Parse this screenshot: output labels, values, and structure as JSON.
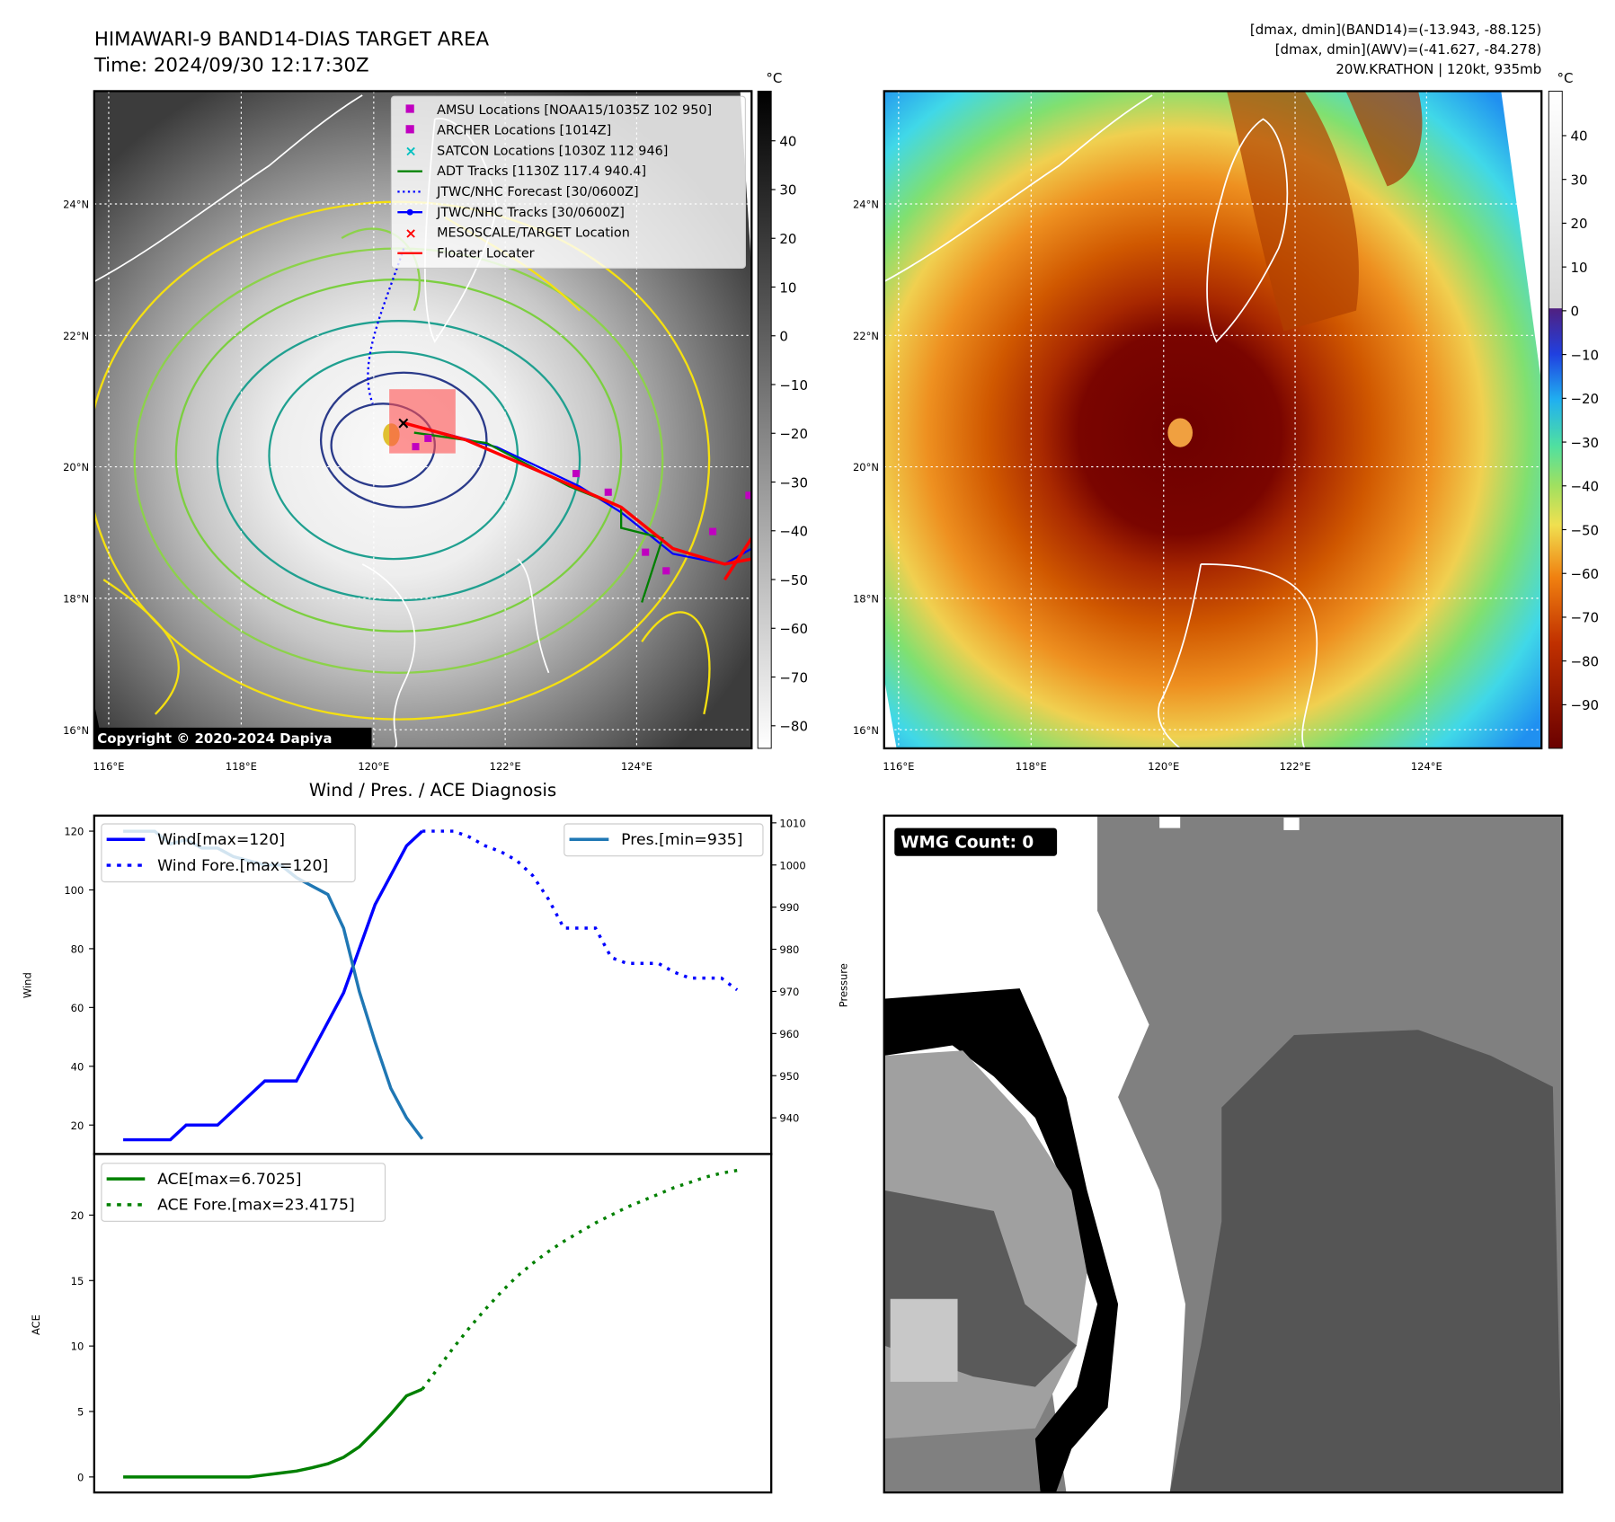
{
  "header": {
    "title": "HIMAWARI-9 BAND14-DIAS TARGET AREA",
    "time": "Time: 2024/09/30 12:17:30Z",
    "stats": [
      "[dmax, dmin](BAND14)=(-13.943, -88.125)",
      "[dmax, dmin](AWV)=(-41.627, -84.278)",
      "20W.KRATHON | 120kt, 935mb"
    ]
  },
  "map_left": {
    "lat_labels": [
      "24°N",
      "22°N",
      "20°N",
      "18°N",
      "16°N"
    ],
    "lon_labels": [
      "116°E",
      "118°E",
      "120°E",
      "122°E",
      "124°E"
    ],
    "colorbar": {
      "unit": "°C",
      "ticks": [
        "40",
        "30",
        "20",
        "10",
        "0",
        "−10",
        "−20",
        "−30",
        "−40",
        "−50",
        "−60",
        "−70",
        "−80"
      ]
    },
    "legend": [
      {
        "label": "AMSU Locations [NOAA15/1035Z 102 950]",
        "marker": "square",
        "color": "#c000c0"
      },
      {
        "label": "ARCHER Locations [1014Z]",
        "marker": "square",
        "color": "#c000c0"
      },
      {
        "label": "SATCON Locations [1030Z 112 946]",
        "marker": "x",
        "color": "#00c0c0"
      },
      {
        "label": "ADT Tracks [1130Z 117.4 940.4]",
        "marker": "line",
        "color": "#008000"
      },
      {
        "label": "JTWC/NHC Forecast [30/0600Z]",
        "marker": "dotted",
        "color": "#0000ff"
      },
      {
        "label": "JTWC/NHC Tracks [30/0600Z]",
        "marker": "line-dot",
        "color": "#0000ff"
      },
      {
        "label": "MESOSCALE/TARGET Location",
        "marker": "x",
        "color": "#ff0000"
      },
      {
        "label": "Floater Locater",
        "marker": "line",
        "color": "#ff0000"
      }
    ],
    "copyright": "Copyright © 2020-2024 Dapiya"
  },
  "map_right": {
    "lat_labels": [
      "24°N",
      "22°N",
      "20°N",
      "18°N",
      "16°N"
    ],
    "lon_labels": [
      "116°E",
      "118°E",
      "120°E",
      "122°E",
      "124°E"
    ],
    "colorbar": {
      "unit": "°C",
      "ticks": [
        "40",
        "30",
        "20",
        "10",
        "0",
        "−10",
        "−20",
        "−30",
        "−40",
        "−50",
        "−60",
        "−70",
        "−80",
        "−90"
      ]
    }
  },
  "chart_data": [
    {
      "type": "line",
      "title": "Wind / Pres. / ACE Diagnosis",
      "ylabel": "Wind",
      "y2label": "Pressure",
      "ylim": [
        10,
        125
      ],
      "y2lim": [
        932,
        1011
      ],
      "yticks": [
        20,
        40,
        60,
        80,
        100,
        120
      ],
      "y2ticks": [
        940,
        950,
        960,
        970,
        980,
        990,
        1000,
        1010
      ],
      "x_index_range": [
        0,
        39
      ],
      "series": [
        {
          "name": "Wind[max=120]",
          "axis": "left",
          "style": "solid",
          "color": "#0000ff",
          "x": [
            0,
            1,
            2,
            3,
            4,
            5,
            6,
            7,
            8,
            9,
            10,
            11,
            12,
            13,
            14,
            15,
            16,
            17,
            18,
            19
          ],
          "values": [
            15,
            15,
            15,
            15,
            20,
            20,
            20,
            25,
            30,
            35,
            35,
            35,
            45,
            55,
            65,
            80,
            95,
            105,
            115,
            120
          ]
        },
        {
          "name": "Wind Fore.[max=120]",
          "axis": "left",
          "style": "dotted",
          "color": "#0000ff",
          "x": [
            19,
            20,
            21,
            22,
            23,
            24,
            25,
            26,
            27,
            28,
            29,
            30,
            31,
            32,
            33,
            34,
            35,
            36,
            37,
            38,
            39
          ],
          "values": [
            120,
            120,
            120,
            118,
            115,
            113,
            110,
            105,
            97,
            87,
            87,
            87,
            77,
            75,
            75,
            75,
            72,
            70,
            70,
            70,
            66
          ]
        },
        {
          "name": "Pres.[min=935]",
          "axis": "right",
          "style": "solid",
          "color": "#1f77b4",
          "x": [
            0,
            1,
            2,
            3,
            4,
            5,
            6,
            7,
            8,
            9,
            10,
            11,
            12,
            13,
            14,
            15,
            16,
            17,
            18,
            19
          ],
          "values": [
            1008,
            1008,
            1008,
            1005,
            1006,
            1004,
            1004,
            1002,
            1001,
            1000,
            1000,
            997,
            995,
            993,
            985,
            970,
            958,
            947,
            940,
            935
          ]
        }
      ],
      "legend_left": [
        "Wind[max=120]",
        "Wind Fore.[max=120]"
      ],
      "legend_right": [
        "Pres.[min=935]"
      ]
    },
    {
      "type": "line",
      "title": "",
      "ylabel": "ACE",
      "ylim": [
        -1,
        25
      ],
      "yticks": [
        0,
        5,
        10,
        15,
        20
      ],
      "series": [
        {
          "name": "ACE[max=6.7025]",
          "style": "solid",
          "color": "#008000",
          "x": [
            0,
            1,
            2,
            3,
            4,
            5,
            6,
            7,
            8,
            9,
            10,
            11,
            12,
            13,
            14,
            15,
            16,
            17,
            18,
            19
          ],
          "values": [
            0,
            0,
            0,
            0,
            0,
            0,
            0,
            0,
            0,
            0.15,
            0.3,
            0.45,
            0.7,
            1.0,
            1.5,
            2.3,
            3.5,
            4.8,
            6.2,
            6.7025
          ]
        },
        {
          "name": "ACE Fore.[max=23.4175]",
          "style": "dotted",
          "color": "#008000",
          "x": [
            19,
            20,
            21,
            22,
            23,
            24,
            25,
            26,
            27,
            28,
            29,
            30,
            31,
            32,
            33,
            34,
            35,
            36,
            37,
            38,
            39
          ],
          "values": [
            6.7025,
            8.3,
            9.9,
            11.4,
            12.8,
            14.1,
            15.3,
            16.3,
            17.2,
            18.0,
            18.7,
            19.4,
            20.0,
            20.6,
            21.1,
            21.6,
            22.1,
            22.5,
            22.9,
            23.2,
            23.4175
          ]
        }
      ]
    }
  ],
  "wmg": {
    "label": "WMG Count: 0"
  }
}
